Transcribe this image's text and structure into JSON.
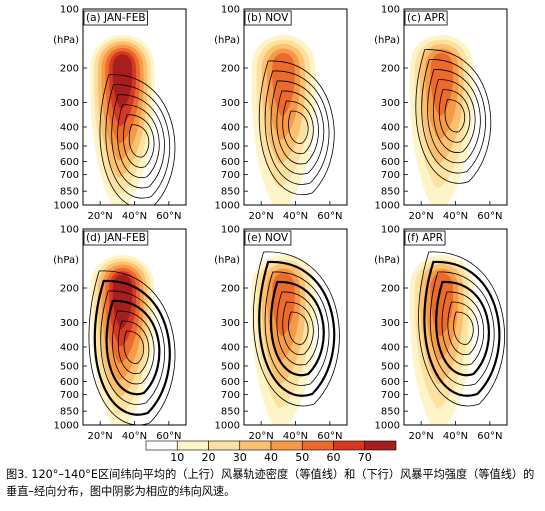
{
  "chart_data": {
    "type": "contour",
    "panels": [
      {
        "label": "(a) JAN-FEB",
        "row": "upper",
        "jet_center": [
          33,
          200
        ],
        "jet_max": 70,
        "contour_center": [
          43,
          470
        ]
      },
      {
        "label": "(b) NOV",
        "row": "upper",
        "jet_center": [
          33,
          200
        ],
        "jet_max": 50,
        "contour_center": [
          42,
          400
        ]
      },
      {
        "label": "(c) APR",
        "row": "upper",
        "jet_center": [
          32,
          200
        ],
        "jet_max": 50,
        "contour_center": [
          40,
          350
        ]
      },
      {
        "label": "(d) JAN-FEB",
        "row": "lower",
        "jet_center": [
          33,
          200
        ],
        "jet_max": 70,
        "contour_center": [
          40,
          400
        ]
      },
      {
        "label": "(e) NOV",
        "row": "lower",
        "jet_center": [
          33,
          200
        ],
        "jet_max": 50,
        "contour_center": [
          42,
          320
        ]
      },
      {
        "label": "(f) APR",
        "row": "lower",
        "jet_center": [
          32,
          200
        ],
        "jet_max": 50,
        "contour_center": [
          45,
          320
        ]
      }
    ],
    "x_ticks": [
      "20°N",
      "40°N",
      "60°N"
    ],
    "x_tick_values": [
      20,
      40,
      60
    ],
    "x_range": [
      10,
      70
    ],
    "y_ticks": [
      "100",
      "200",
      "300",
      "400",
      "500",
      "600",
      "700",
      "850",
      "1000"
    ],
    "y_tick_values": [
      100,
      200,
      300,
      400,
      500,
      600,
      700,
      850,
      1000
    ],
    "y_unit_label": "(hPa)",
    "y_range": [
      100,
      1000
    ],
    "y_scale": "log",
    "colorbar": {
      "levels": [
        "10",
        "20",
        "30",
        "40",
        "50",
        "60",
        "70"
      ],
      "colors": [
        "#ffffff",
        "#fdf4c8",
        "#fde1a0",
        "#fcc071",
        "#f59a46",
        "#eb6a2c",
        "#d63824",
        "#a71e1e"
      ]
    }
  },
  "caption": {
    "text": "图3. 120°–140°E区间纬向平均的（上行）风暴轨迹密度（等值线）和（下行）风暴平均强度（等值线）的垂直–经向分布，图中阴影为相应的纬向风速。"
  }
}
